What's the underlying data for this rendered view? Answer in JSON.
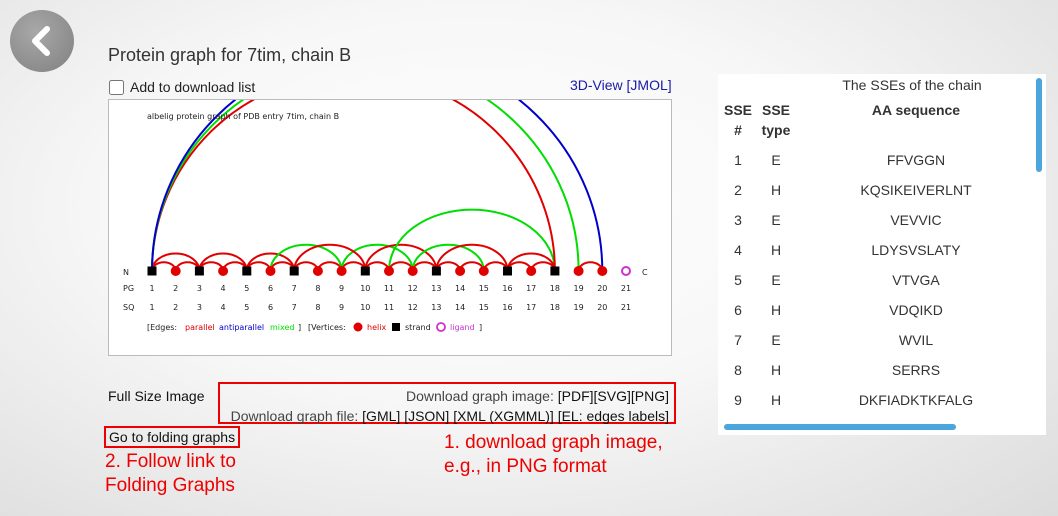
{
  "nav": {
    "back_label": "Back"
  },
  "page": {
    "title": "Protein graph for 7tim, chain B"
  },
  "download_list": {
    "label": "Add to download list",
    "checked": false
  },
  "view3d": {
    "label": "3D-View [JMOL]"
  },
  "graph": {
    "title": "albelig protein graph of PDB entry 7tim, chain B",
    "n_label": "N",
    "c_label": "C",
    "pg_label": "PG",
    "sq_label": "SQ",
    "vertices": [
      {
        "pg": "1",
        "sq": "1",
        "type": "E"
      },
      {
        "pg": "2",
        "sq": "2",
        "type": "H"
      },
      {
        "pg": "3",
        "sq": "3",
        "type": "E"
      },
      {
        "pg": "4",
        "sq": "4",
        "type": "H"
      },
      {
        "pg": "5",
        "sq": "5",
        "type": "E"
      },
      {
        "pg": "6",
        "sq": "6",
        "type": "H"
      },
      {
        "pg": "7",
        "sq": "7",
        "type": "E"
      },
      {
        "pg": "8",
        "sq": "8",
        "type": "H"
      },
      {
        "pg": "9",
        "sq": "9",
        "type": "H"
      },
      {
        "pg": "10",
        "sq": "10",
        "type": "E"
      },
      {
        "pg": "11",
        "sq": "11",
        "type": "H"
      },
      {
        "pg": "12",
        "sq": "12",
        "type": "H"
      },
      {
        "pg": "13",
        "sq": "13",
        "type": "E"
      },
      {
        "pg": "14",
        "sq": "14",
        "type": "H"
      },
      {
        "pg": "15",
        "sq": "15",
        "type": "H"
      },
      {
        "pg": "16",
        "sq": "16",
        "type": "E"
      },
      {
        "pg": "17",
        "sq": "17",
        "type": "H"
      },
      {
        "pg": "18",
        "sq": "18",
        "type": "E"
      },
      {
        "pg": "19",
        "sq": "19",
        "type": "H"
      },
      {
        "pg": "20",
        "sq": "20",
        "type": "H"
      },
      {
        "pg": "21",
        "sq": "21",
        "type": "L"
      }
    ],
    "edges": [
      {
        "from": 1,
        "to": 2,
        "type": "parallel"
      },
      {
        "from": 2,
        "to": 3,
        "type": "parallel"
      },
      {
        "from": 3,
        "to": 4,
        "type": "parallel"
      },
      {
        "from": 4,
        "to": 5,
        "type": "parallel"
      },
      {
        "from": 5,
        "to": 6,
        "type": "parallel"
      },
      {
        "from": 6,
        "to": 7,
        "type": "parallel"
      },
      {
        "from": 7,
        "to": 8,
        "type": "parallel"
      },
      {
        "from": 8,
        "to": 9,
        "type": "parallel"
      },
      {
        "from": 9,
        "to": 10,
        "type": "parallel"
      },
      {
        "from": 10,
        "to": 11,
        "type": "parallel"
      },
      {
        "from": 11,
        "to": 12,
        "type": "parallel"
      },
      {
        "from": 12,
        "to": 13,
        "type": "parallel"
      },
      {
        "from": 13,
        "to": 14,
        "type": "parallel"
      },
      {
        "from": 14,
        "to": 15,
        "type": "parallel"
      },
      {
        "from": 15,
        "to": 16,
        "type": "parallel"
      },
      {
        "from": 16,
        "to": 17,
        "type": "parallel"
      },
      {
        "from": 17,
        "to": 18,
        "type": "parallel"
      },
      {
        "from": 19,
        "to": 20,
        "type": "parallel"
      },
      {
        "from": 1,
        "to": 3,
        "type": "parallel"
      },
      {
        "from": 3,
        "to": 5,
        "type": "parallel"
      },
      {
        "from": 5,
        "to": 7,
        "type": "parallel"
      },
      {
        "from": 6,
        "to": 9,
        "type": "mixed"
      },
      {
        "from": 9,
        "to": 12,
        "type": "mixed"
      },
      {
        "from": 10,
        "to": 13,
        "type": "parallel"
      },
      {
        "from": 12,
        "to": 15,
        "type": "mixed"
      },
      {
        "from": 13,
        "to": 16,
        "type": "parallel"
      },
      {
        "from": 11,
        "to": 18,
        "type": "mixed"
      },
      {
        "from": 7,
        "to": 10,
        "type": "parallel"
      },
      {
        "from": 16,
        "to": 18,
        "type": "parallel"
      },
      {
        "from": 1,
        "to": 18,
        "type": "parallel"
      },
      {
        "from": 1,
        "to": 19,
        "type": "mixed"
      },
      {
        "from": 1,
        "to": 20,
        "type": "antiparallel"
      }
    ],
    "legend": {
      "edges_open": "[Edges:",
      "parallel": "parallel",
      "antiparallel": "antiparallel",
      "mixed": "mixed",
      "edges_close": "]",
      "vertices_open": "[Vertices:",
      "helix": "helix",
      "strand": "strand",
      "ligand": "ligand",
      "vertices_close": "]"
    },
    "colors": {
      "parallel": "#e00000",
      "antiparallel": "#0000cc",
      "mixed": "#00dd00",
      "helix": "#e00000",
      "strand": "#000000",
      "ligand": "#cc33cc"
    }
  },
  "full_size": {
    "label": "Full Size Image"
  },
  "downloads": {
    "image_prefix": "Download graph image:",
    "image_links": [
      "[PDF]",
      "[SVG]",
      "[PNG]"
    ],
    "file_prefix": "Download graph file:",
    "file_links": [
      "[GML]",
      "[JSON]",
      "[XML (XGMML)]",
      "[EL: edges labels]"
    ]
  },
  "folding_link": {
    "label": "Go to folding graphs"
  },
  "annotations": {
    "note1_line1": "1. download graph image,",
    "note1_line2": "e.g., in PNG format",
    "note2_line1": "2. Follow link to",
    "note2_line2": "Folding Graphs"
  },
  "sse_table": {
    "caption": "The SSEs of the chain",
    "headers": {
      "num_line1": "SSE",
      "num_line2": "#",
      "type_line1": "SSE",
      "type_line2": "type",
      "seq": "AA sequence"
    },
    "rows": [
      {
        "num": "1",
        "type": "E",
        "seq": "FFVGGN"
      },
      {
        "num": "2",
        "type": "H",
        "seq": "KQSIKEIVERLNT"
      },
      {
        "num": "3",
        "type": "E",
        "seq": "VEVVIC"
      },
      {
        "num": "4",
        "type": "H",
        "seq": "LDYSVSLATY"
      },
      {
        "num": "5",
        "type": "E",
        "seq": "VTVGA"
      },
      {
        "num": "6",
        "type": "H",
        "seq": "VDQIKD"
      },
      {
        "num": "7",
        "type": "E",
        "seq": "WVIL"
      },
      {
        "num": "8",
        "type": "H",
        "seq": "SERRS"
      },
      {
        "num": "9",
        "type": "H",
        "seq": "DKFIADKTKFALG"
      }
    ]
  }
}
